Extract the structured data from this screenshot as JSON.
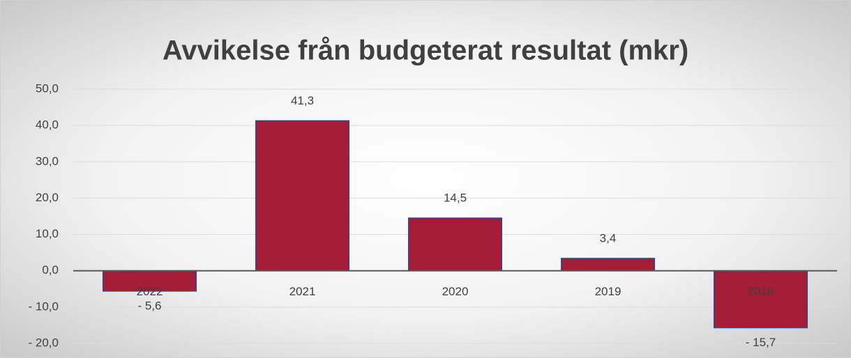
{
  "chart_data": {
    "type": "bar",
    "title": "Avvikelse från budgeterat resultat (mkr)",
    "categories": [
      "2022",
      "2021",
      "2020",
      "2019",
      "2018"
    ],
    "values": [
      -5.6,
      41.3,
      14.5,
      3.4,
      -15.7
    ],
    "value_labels": [
      "- 5,6",
      "41,3",
      "14,5",
      "3,4",
      "- 15,7"
    ],
    "color": "#a51c36",
    "ylim": [
      -20,
      50
    ],
    "yticks": [
      {
        "value": -20,
        "label": "- 20,0"
      },
      {
        "value": -10,
        "label": "- 10,0"
      },
      {
        "value": 0,
        "label": "0,0"
      },
      {
        "value": 10,
        "label": "10,0"
      },
      {
        "value": 20,
        "label": "20,0"
      },
      {
        "value": 30,
        "label": "30,0"
      },
      {
        "value": 40,
        "label": "40,0"
      },
      {
        "value": 50,
        "label": "50,0"
      }
    ],
    "grid": true
  }
}
